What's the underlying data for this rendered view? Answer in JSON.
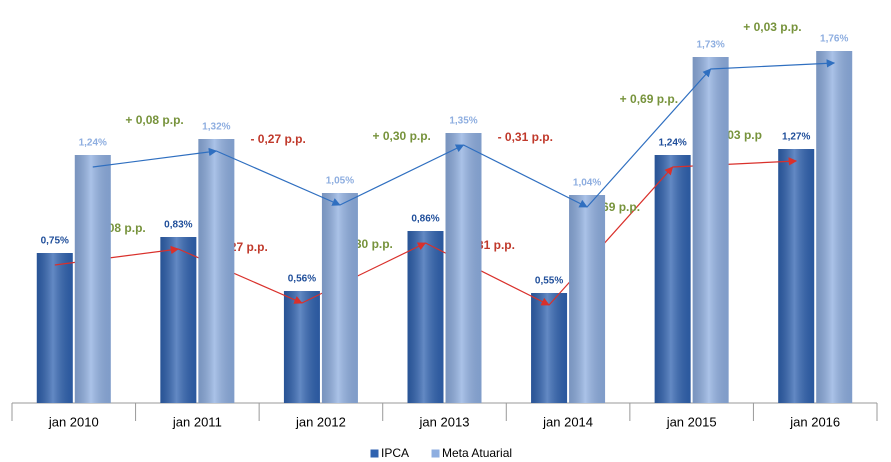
{
  "chart_data": {
    "type": "bar",
    "categories": [
      "jan 2010",
      "jan 2011",
      "jan 2012",
      "jan 2013",
      "jan 2014",
      "jan 2015",
      "jan 2016"
    ],
    "series": [
      {
        "name": "IPCA",
        "color": "#2f62b0",
        "label_color": "#1f4e9a",
        "arrow_color": "#d9302b",
        "values": [
          0.75,
          0.83,
          0.56,
          0.86,
          0.55,
          1.24,
          1.27
        ],
        "value_labels": [
          "0,75%",
          "0,83%",
          "0,56%",
          "0,86%",
          "0,55%",
          "1,24%",
          "1,27%"
        ],
        "change_labels": [
          null,
          "+ 0,08 p.p.",
          "- 0,27 p.p.",
          "+ 0,30 p.p.",
          "- 0,31 p.p.",
          "+ 0,69 p.p.",
          "+ 0,03 p.p"
        ]
      },
      {
        "name": "Meta Atuarial",
        "color": "#8eaee0",
        "label_color": "#8eaee0",
        "arrow_color": "#2f6fc0",
        "values": [
          1.24,
          1.32,
          1.05,
          1.35,
          1.04,
          1.73,
          1.76
        ],
        "value_labels": [
          "1,24%",
          "1,32%",
          "1,05%",
          "1,35%",
          "1,04%",
          "1,73%",
          "1,76%"
        ],
        "change_labels": [
          null,
          "+ 0,08 p.p.",
          "- 0,27 p.p.",
          "+ 0,30 p.p.",
          "- 0,31 p.p.",
          "+ 0,69 p.p.",
          "+ 0,03 p.p."
        ]
      }
    ],
    "increase_color": "#77933c",
    "decrease_color": "#c0392b",
    "ylim": [
      0,
      2
    ],
    "legend": "bottom"
  }
}
